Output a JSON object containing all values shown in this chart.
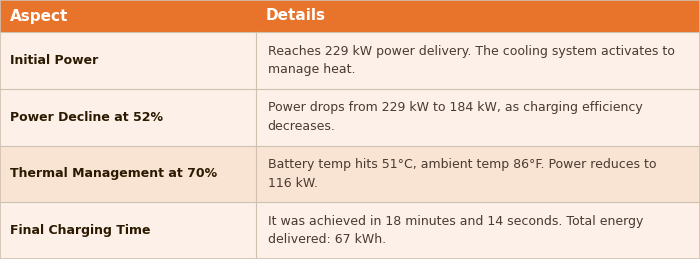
{
  "header": [
    "Aspect",
    "Details"
  ],
  "header_bg": "#E8732A",
  "header_text_color": "#FFFFFF",
  "row_bg_light": "#FDF0E8",
  "row_bg_alt": "#F9E4D4",
  "border_color": "#D0C0B0",
  "aspect_color": "#2B1A00",
  "details_color": "#4A3A30",
  "col_split": 0.365,
  "rows": [
    {
      "aspect": "Initial Power",
      "details": "Reaches 229 kW power delivery. The cooling system activates to\nmanage heat.",
      "alt": false
    },
    {
      "aspect": "Power Decline at 52%",
      "details": "Power drops from 229 kW to 184 kW, as charging efficiency\ndecreases.",
      "alt": false
    },
    {
      "aspect": "Thermal Management at 70%",
      "details": "Battery temp hits 51°C, ambient temp 86°F. Power reduces to\n116 kW.",
      "alt": true
    },
    {
      "aspect": "Final Charging Time",
      "details": "It was achieved in 18 minutes and 14 seconds. Total energy\ndelivered: 67 kWh.",
      "alt": false
    }
  ],
  "figsize": [
    7.0,
    2.59
  ],
  "dpi": 100
}
